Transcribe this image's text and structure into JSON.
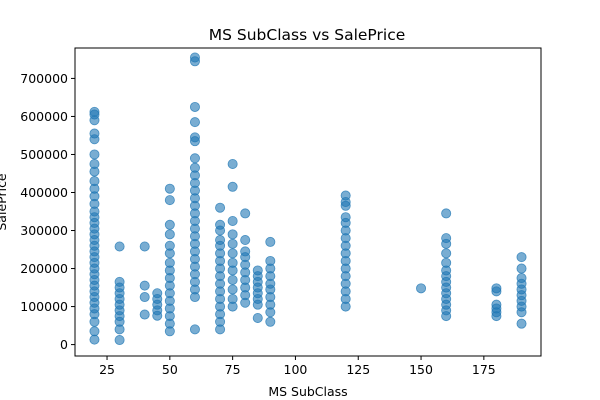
{
  "chart_data": {
    "type": "scatter",
    "title": "MS SubClass vs SalePrice",
    "xlabel": "MS SubClass",
    "ylabel": "SalePrice",
    "xlim": [
      12.25,
      197.75
    ],
    "ylim": [
      -30000,
      780000
    ],
    "xticks": [
      25,
      50,
      75,
      100,
      125,
      150,
      175
    ],
    "yticks": [
      0,
      100000,
      200000,
      300000,
      400000,
      500000,
      600000,
      700000
    ],
    "grid": false,
    "marker_color": "#1f77b4",
    "marker_alpha": 0.6,
    "series": [
      {
        "points": [
          [
            20,
            13000
          ],
          [
            20,
            35000
          ],
          [
            20,
            60000
          ],
          [
            20,
            80000
          ],
          [
            20,
            95000
          ],
          [
            20,
            110000
          ],
          [
            20,
            125000
          ],
          [
            20,
            140000
          ],
          [
            20,
            155000
          ],
          [
            20,
            170000
          ],
          [
            20,
            185000
          ],
          [
            20,
            200000
          ],
          [
            20,
            215000
          ],
          [
            20,
            230000
          ],
          [
            20,
            245000
          ],
          [
            20,
            260000
          ],
          [
            20,
            275000
          ],
          [
            20,
            290000
          ],
          [
            20,
            305000
          ],
          [
            20,
            320000
          ],
          [
            20,
            335000
          ],
          [
            20,
            350000
          ],
          [
            20,
            370000
          ],
          [
            20,
            390000
          ],
          [
            20,
            410000
          ],
          [
            20,
            430000
          ],
          [
            20,
            455000
          ],
          [
            20,
            475000
          ],
          [
            20,
            500000
          ],
          [
            20,
            540000
          ],
          [
            20,
            555000
          ],
          [
            20,
            590000
          ],
          [
            20,
            605000
          ],
          [
            20,
            612000
          ],
          [
            30,
            12000
          ],
          [
            30,
            40000
          ],
          [
            30,
            60000
          ],
          [
            30,
            75000
          ],
          [
            30,
            90000
          ],
          [
            30,
            105000
          ],
          [
            30,
            120000
          ],
          [
            30,
            135000
          ],
          [
            30,
            150000
          ],
          [
            30,
            165000
          ],
          [
            30,
            258000
          ],
          [
            40,
            79000
          ],
          [
            40,
            125000
          ],
          [
            40,
            155000
          ],
          [
            40,
            258000
          ],
          [
            45,
            76000
          ],
          [
            45,
            90000
          ],
          [
            45,
            105000
          ],
          [
            45,
            120000
          ],
          [
            45,
            135000
          ],
          [
            50,
            35000
          ],
          [
            50,
            55000
          ],
          [
            50,
            75000
          ],
          [
            50,
            95000
          ],
          [
            50,
            115000
          ],
          [
            50,
            135000
          ],
          [
            50,
            155000
          ],
          [
            50,
            175000
          ],
          [
            50,
            195000
          ],
          [
            50,
            215000
          ],
          [
            50,
            240000
          ],
          [
            50,
            260000
          ],
          [
            50,
            290000
          ],
          [
            50,
            315000
          ],
          [
            50,
            380000
          ],
          [
            50,
            410000
          ],
          [
            60,
            40000
          ],
          [
            60,
            125000
          ],
          [
            60,
            145000
          ],
          [
            60,
            165000
          ],
          [
            60,
            185000
          ],
          [
            60,
            205000
          ],
          [
            60,
            225000
          ],
          [
            60,
            245000
          ],
          [
            60,
            265000
          ],
          [
            60,
            285000
          ],
          [
            60,
            305000
          ],
          [
            60,
            325000
          ],
          [
            60,
            345000
          ],
          [
            60,
            365000
          ],
          [
            60,
            385000
          ],
          [
            60,
            405000
          ],
          [
            60,
            425000
          ],
          [
            60,
            445000
          ],
          [
            60,
            465000
          ],
          [
            60,
            490000
          ],
          [
            60,
            535000
          ],
          [
            60,
            545000
          ],
          [
            60,
            585000
          ],
          [
            60,
            625000
          ],
          [
            60,
            745000
          ],
          [
            60,
            755000
          ],
          [
            70,
            40000
          ],
          [
            70,
            60000
          ],
          [
            70,
            80000
          ],
          [
            70,
            100000
          ],
          [
            70,
            120000
          ],
          [
            70,
            140000
          ],
          [
            70,
            160000
          ],
          [
            70,
            180000
          ],
          [
            70,
            200000
          ],
          [
            70,
            220000
          ],
          [
            70,
            240000
          ],
          [
            70,
            260000
          ],
          [
            70,
            275000
          ],
          [
            70,
            300000
          ],
          [
            70,
            315000
          ],
          [
            70,
            360000
          ],
          [
            75,
            100000
          ],
          [
            75,
            120000
          ],
          [
            75,
            145000
          ],
          [
            75,
            170000
          ],
          [
            75,
            195000
          ],
          [
            75,
            215000
          ],
          [
            75,
            240000
          ],
          [
            75,
            265000
          ],
          [
            75,
            290000
          ],
          [
            75,
            325000
          ],
          [
            75,
            415000
          ],
          [
            75,
            475000
          ],
          [
            80,
            110000
          ],
          [
            80,
            130000
          ],
          [
            80,
            150000
          ],
          [
            80,
            170000
          ],
          [
            80,
            190000
          ],
          [
            80,
            210000
          ],
          [
            80,
            230000
          ],
          [
            80,
            245000
          ],
          [
            80,
            275000
          ],
          [
            80,
            345000
          ],
          [
            85,
            70000
          ],
          [
            85,
            105000
          ],
          [
            85,
            120000
          ],
          [
            85,
            135000
          ],
          [
            85,
            150000
          ],
          [
            85,
            165000
          ],
          [
            85,
            180000
          ],
          [
            85,
            195000
          ],
          [
            90,
            60000
          ],
          [
            90,
            85000
          ],
          [
            90,
            105000
          ],
          [
            90,
            125000
          ],
          [
            90,
            145000
          ],
          [
            90,
            160000
          ],
          [
            90,
            180000
          ],
          [
            90,
            200000
          ],
          [
            90,
            220000
          ],
          [
            90,
            270000
          ],
          [
            120,
            100000
          ],
          [
            120,
            120000
          ],
          [
            120,
            140000
          ],
          [
            120,
            160000
          ],
          [
            120,
            180000
          ],
          [
            120,
            200000
          ],
          [
            120,
            220000
          ],
          [
            120,
            240000
          ],
          [
            120,
            260000
          ],
          [
            120,
            280000
          ],
          [
            120,
            300000
          ],
          [
            120,
            320000
          ],
          [
            120,
            335000
          ],
          [
            120,
            365000
          ],
          [
            120,
            375000
          ],
          [
            120,
            392000
          ],
          [
            150,
            148000
          ],
          [
            160,
            75000
          ],
          [
            160,
            90000
          ],
          [
            160,
            105000
          ],
          [
            160,
            120000
          ],
          [
            160,
            135000
          ],
          [
            160,
            150000
          ],
          [
            160,
            165000
          ],
          [
            160,
            180000
          ],
          [
            160,
            195000
          ],
          [
            160,
            215000
          ],
          [
            160,
            240000
          ],
          [
            160,
            265000
          ],
          [
            160,
            280000
          ],
          [
            160,
            345000
          ],
          [
            180,
            75000
          ],
          [
            180,
            85000
          ],
          [
            180,
            95000
          ],
          [
            180,
            105000
          ],
          [
            180,
            140000
          ],
          [
            180,
            148000
          ],
          [
            190,
            55000
          ],
          [
            190,
            85000
          ],
          [
            190,
            100000
          ],
          [
            190,
            115000
          ],
          [
            190,
            130000
          ],
          [
            190,
            145000
          ],
          [
            190,
            160000
          ],
          [
            190,
            175000
          ],
          [
            190,
            200000
          ],
          [
            190,
            230000
          ]
        ]
      }
    ]
  }
}
